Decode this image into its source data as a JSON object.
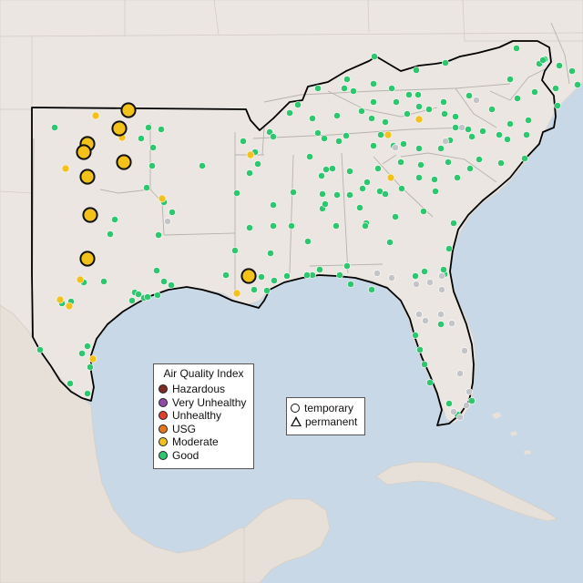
{
  "legend": {
    "title": "Air Quality Index",
    "categories": [
      {
        "label": "Hazardous",
        "color": "#7e2b23"
      },
      {
        "label": "Very Unhealthy",
        "color": "#8f4aa8"
      },
      {
        "label": "Unhealthy",
        "color": "#e0402a"
      },
      {
        "label": "USG",
        "color": "#e6761e"
      },
      {
        "label": "Moderate",
        "color": "#f2c11a"
      },
      {
        "label": "Good",
        "color": "#2ec66e"
      }
    ]
  },
  "monitor_types": {
    "temporary": "temporary",
    "permanent": "permanent"
  },
  "colors": {
    "ocean": "#c9d8e6",
    "land": "#ebe6e1",
    "no_data": "#c2c4c8",
    "good": "#2ec66e",
    "moderate": "#f2c11a"
  }
}
